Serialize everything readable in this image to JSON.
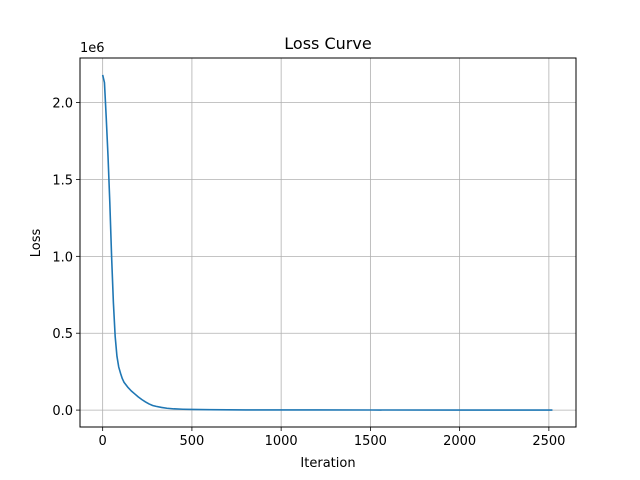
{
  "chart_data": {
    "type": "line",
    "title": "Loss Curve",
    "xlabel": "Iteration",
    "ylabel": "Loss",
    "y_offset_label": "1e6",
    "xlim": [
      -127,
      2652
    ],
    "ylim": [
      -110000,
      2290000
    ],
    "xticks": [
      0,
      500,
      1000,
      1500,
      2000,
      2500
    ],
    "xtick_labels": [
      "0",
      "500",
      "1000",
      "1500",
      "2000",
      "2500"
    ],
    "yticks": [
      0,
      500000,
      1000000,
      1500000,
      2000000
    ],
    "ytick_labels": [
      "0.0",
      "0.5",
      "1.0",
      "1.5",
      "2.0"
    ],
    "grid": true,
    "series": [
      {
        "color": "#1f77b4",
        "x": [
          0,
          10,
          20,
          30,
          40,
          50,
          60,
          70,
          80,
          90,
          100,
          110,
          120,
          140,
          160,
          180,
          200,
          220,
          240,
          260,
          280,
          300,
          330,
          360,
          400,
          450,
          500,
          600,
          700,
          800,
          1000,
          1200,
          1500,
          2000,
          2520
        ],
        "y": [
          2180000,
          2130000,
          1900000,
          1650000,
          1350000,
          1000000,
          700000,
          480000,
          350000,
          280000,
          240000,
          205000,
          180000,
          150000,
          125000,
          105000,
          85000,
          68000,
          53000,
          40000,
          30000,
          24000,
          17000,
          12000,
          8000,
          5500,
          4000,
          2500,
          1800,
          1300,
          900,
          700,
          500,
          350,
          250
        ]
      }
    ]
  }
}
